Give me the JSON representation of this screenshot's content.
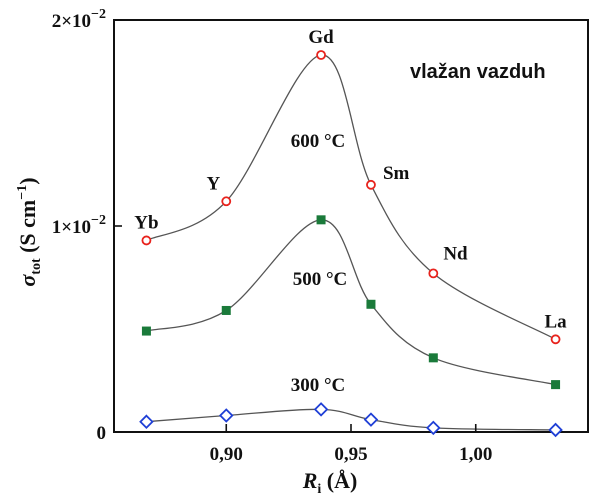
{
  "chart_data": {
    "type": "scatter",
    "annotation": "vlažan vazduh",
    "xlabel": {
      "main": "R",
      "sub": "i",
      "unit": " (Å)"
    },
    "ylabel": {
      "main": "σ",
      "sub": "tot",
      "unit_open": " (S cm",
      "unit_sup": "−1",
      "unit_close": ")"
    },
    "xlim": [
      0.855,
      1.045
    ],
    "ylim": [
      0,
      0.02
    ],
    "x_ticks": [
      {
        "value": 0.9,
        "label": "0,90"
      },
      {
        "value": 0.95,
        "label": "0,95"
      },
      {
        "value": 1.0,
        "label": "1,00"
      }
    ],
    "y_ticks": [
      {
        "value": 0,
        "label": "0",
        "mant": "",
        "exp": ""
      },
      {
        "value": 0.01,
        "label": "",
        "mant": "1×10",
        "exp": "−2"
      },
      {
        "value": 0.02,
        "label": "",
        "mant": "2×10",
        "exp": "−2"
      }
    ],
    "element_labels": [
      "Yb",
      "Y",
      "Gd",
      "Sm",
      "Nd",
      "La"
    ],
    "x": [
      0.868,
      0.9,
      0.938,
      0.958,
      0.983,
      1.032
    ],
    "series": [
      {
        "name": "600 °C",
        "marker": "circle-open",
        "color": "#e8231d",
        "values": [
          0.0093,
          0.0112,
          0.0183,
          0.012,
          0.0077,
          0.0045
        ]
      },
      {
        "name": "500 °C",
        "marker": "square-filled",
        "color": "#1a7a3a",
        "values": [
          0.0049,
          0.0059,
          0.0103,
          0.0062,
          0.0036,
          0.0023
        ]
      },
      {
        "name": "300 °C",
        "marker": "diamond-open",
        "color": "#1f3fd6",
        "values": [
          0.0005,
          0.0008,
          0.0011,
          0.0006,
          0.0002,
          0.0001
        ]
      }
    ]
  }
}
